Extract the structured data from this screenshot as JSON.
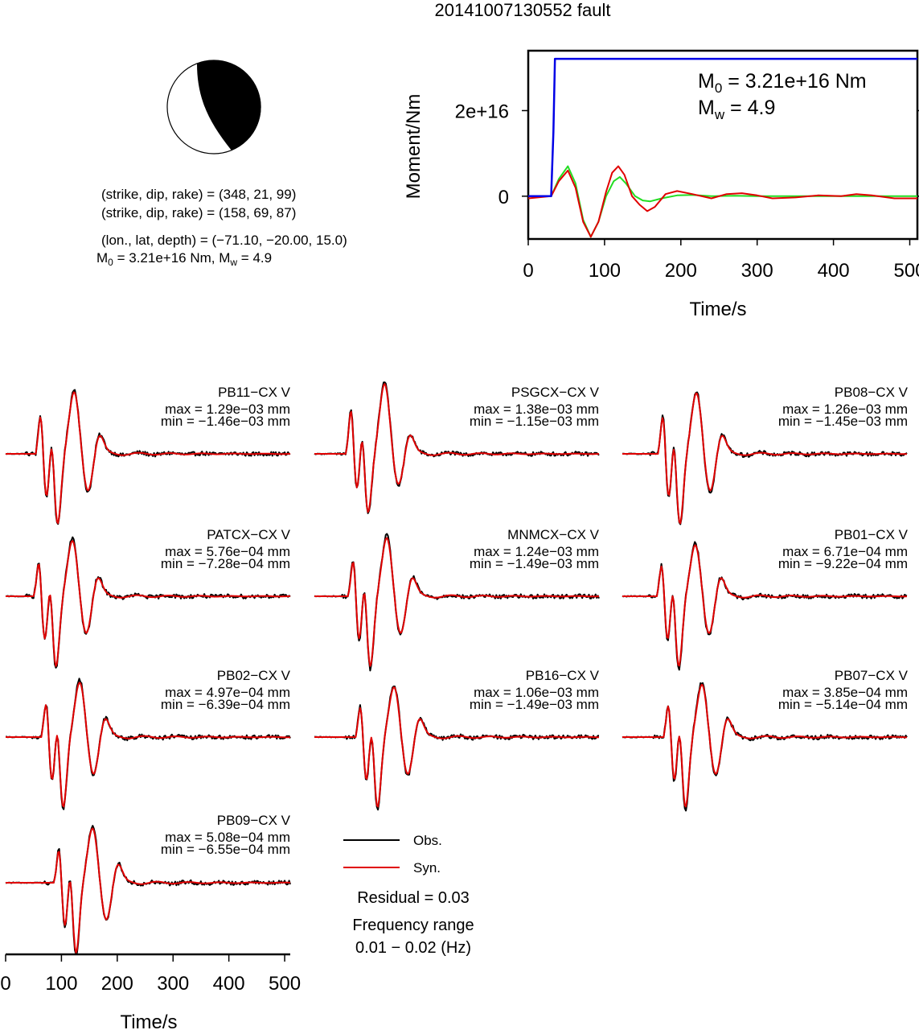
{
  "title": "20141007130552 fault",
  "mechanism": {
    "plane1": "(strike, dip, rake) = (348, 21, 99)",
    "plane2": "(strike, dip, rake) = (158, 69, 87)",
    "location": "(lon., lat, depth) = (−71.10, −20.00, 15.0)",
    "moment_line": {
      "m0": "3.21e+16 Nm",
      "mw": "4.9"
    }
  },
  "colors": {
    "obs": "#000000",
    "syn": "#e00000",
    "stf": "#0000e6",
    "green": "#22dd22"
  },
  "chart_data": [
    {
      "type": "line",
      "name": "moment-rate-function",
      "xlabel": "Time/s",
      "ylabel": "Moment/Nm",
      "xlim": [
        0,
        510
      ],
      "ylim": [
        -1e+16,
        3.4e+16
      ],
      "x_ticks": [
        "0",
        "100",
        "200",
        "300",
        "400",
        "500"
      ],
      "y_ticks": [
        {
          "value": 0,
          "label": "0"
        },
        {
          "value": 2e+16,
          "label": "2e+16"
        }
      ],
      "annotations": {
        "m0_label": "M",
        "m0_sub": "0",
        "m0_value": " = 3.21e+16 Nm",
        "mw_label": "M",
        "mw_sub": "w",
        "mw_value": " = 4.9"
      },
      "series": [
        {
          "color": "blue",
          "x": [
            0,
            30,
            33,
            35,
            510
          ],
          "y": [
            0,
            0,
            1.5e+16,
            3.21e+16,
            3.21e+16
          ]
        },
        {
          "color": "red",
          "x": [
            0,
            30,
            40,
            52,
            62,
            72,
            82,
            92,
            102,
            110,
            118,
            126,
            136,
            146,
            156,
            166,
            180,
            195,
            215,
            240,
            260,
            280,
            300,
            320,
            350,
            380,
            410,
            430,
            450,
            480,
            510
          ],
          "y": [
            -500000000000000.0,
            0,
            3500000000000000.0,
            6000000000000000.0,
            2000000000000000.0,
            -6000000000000000.0,
            -9500000000000000.0,
            -6000000000000000.0,
            1000000000000000.0,
            5500000000000000.0,
            7000000000000000.0,
            5000000000000000.0,
            0,
            -2000000000000000.0,
            -3500000000000000.0,
            -2500000000000000.0,
            500000000000000.0,
            1200000000000000.0,
            500000000000000.0,
            -500000000000000.0,
            500000000000000.0,
            700000000000000.0,
            200000000000000.0,
            -500000000000000.0,
            -300000000000000.0,
            200000000000000.0,
            0,
            500000000000000.0,
            200000000000000.0,
            -500000000000000.0,
            -500000000000000.0
          ]
        },
        {
          "color": "green",
          "x": [
            0,
            30,
            40,
            52,
            62,
            72,
            82,
            92,
            102,
            112,
            120,
            128,
            140,
            150,
            160,
            175,
            195,
            215,
            240,
            270,
            300,
            340,
            400,
            510
          ],
          "y": [
            0,
            0,
            4000000000000000.0,
            7000000000000000.0,
            3000000000000000.0,
            -5500000000000000.0,
            -9500000000000000.0,
            -6000000000000000.0,
            0,
            3500000000000000.0,
            4500000000000000.0,
            3000000000000000.0,
            0,
            -1000000000000000.0,
            -1200000000000000.0,
            -500000000000000.0,
            200000000000000.0,
            300000000000000.0,
            0,
            100000000000000.0,
            0,
            0,
            0,
            0
          ]
        }
      ]
    },
    {
      "type": "line",
      "name": "waveform-fits",
      "xlabel": "Time/s",
      "xlim": [
        0,
        510
      ],
      "x_ticks": [
        "0",
        "100",
        "200",
        "300",
        "400",
        "500"
      ],
      "legend": {
        "obs": "Obs.",
        "syn": "Syn."
      },
      "residual": "Residual = 0.03",
      "freq_title": "Frequency range",
      "freq_value": "0.01 − 0.02 (Hz)",
      "stations": [
        {
          "label": "PB11−CX V",
          "max": "max = 1.29e−03 mm",
          "min": "min = −1.46e−03 mm",
          "onset": 55,
          "peak": 0.00129,
          "trough": -0.00146
        },
        {
          "label": "PSGCX−CX V",
          "max": "max = 1.38e−03 mm",
          "min": "min = −1.15e−03 mm",
          "onset": 58,
          "peak": 0.00138,
          "trough": -0.00115
        },
        {
          "label": "PB08−CX V",
          "max": "max = 1.26e−03 mm",
          "min": "min = −1.45e−03 mm",
          "onset": 65,
          "peak": 0.00126,
          "trough": -0.00145
        },
        {
          "label": "PATCX−CX V",
          "max": "max = 5.76e−04 mm",
          "min": "min = −7.28e−04 mm",
          "onset": 52,
          "peak": 0.000576,
          "trough": -0.000728
        },
        {
          "label": "MNMCX−CX V",
          "max": "max = 1.24e−03 mm",
          "min": "min = −1.49e−03 mm",
          "onset": 62,
          "peak": 0.00124,
          "trough": -0.00149
        },
        {
          "label": "PB01−CX V",
          "max": "max = 6.71e−04 mm",
          "min": "min = −9.22e−04 mm",
          "onset": 63,
          "peak": 0.000671,
          "trough": -0.000922
        },
        {
          "label": "PB02−CX V",
          "max": "max = 4.97e−04 mm",
          "min": "min = −6.39e−04 mm",
          "onset": 65,
          "peak": 0.000497,
          "trough": -0.000639
        },
        {
          "label": "PB16−CX V",
          "max": "max = 1.06e−03 mm",
          "min": "min = −1.49e−03 mm",
          "onset": 75,
          "peak": 0.00106,
          "trough": -0.00149
        },
        {
          "label": "PB07−CX V",
          "max": "max = 3.85e−04 mm",
          "min": "min = −5.14e−04 mm",
          "onset": 75,
          "peak": 0.000385,
          "trough": -0.000514
        },
        {
          "label": "PB09−CX V",
          "max": "max = 5.08e−04 mm",
          "min": "min = −6.55e−04 mm",
          "onset": 88,
          "peak": 0.000508,
          "trough": -0.000655
        }
      ]
    }
  ]
}
